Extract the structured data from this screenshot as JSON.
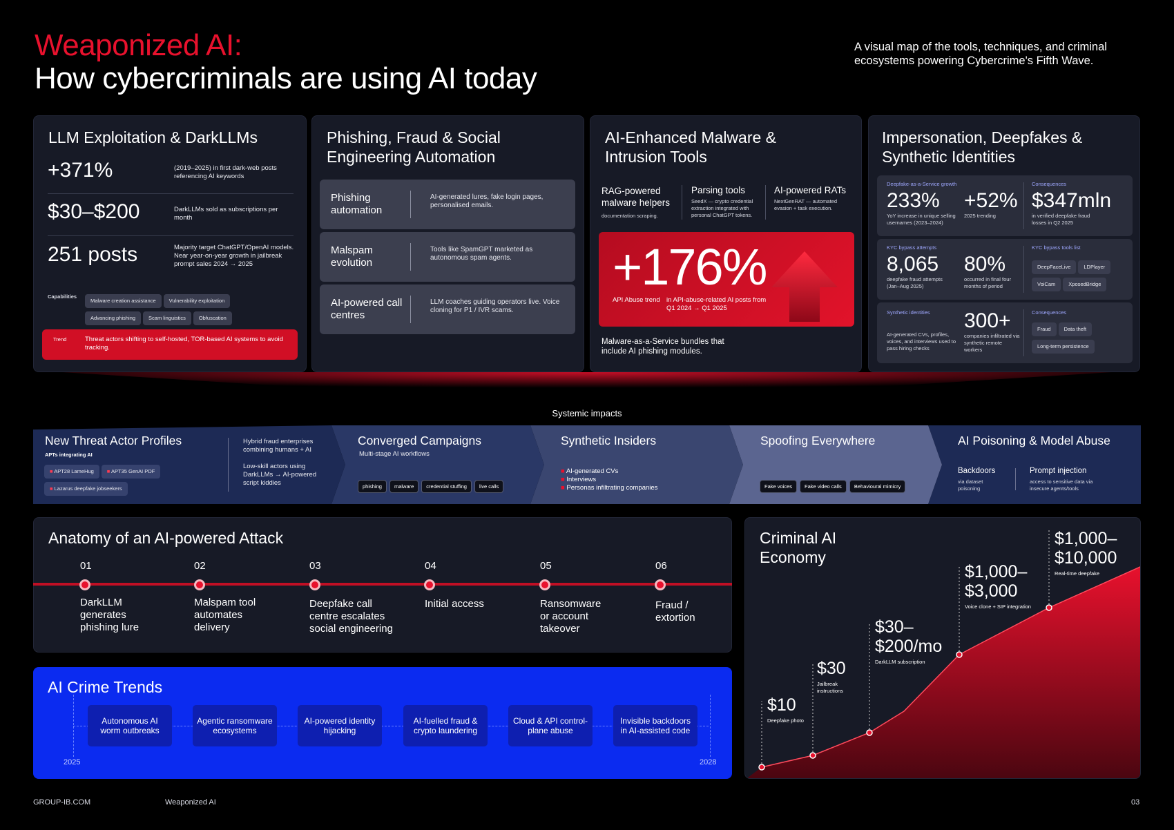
{
  "header": {
    "title_red": "Weaponized AI:",
    "title": "How cybercriminals are using AI today",
    "intro": "A visual map of the tools, techniques, and criminal ecosystems powering Cybercrime's Fifth Wave."
  },
  "llm": {
    "title": "LLM Exploitation & DarkLLMs",
    "stats": [
      {
        "value": "+371%",
        "desc": "(2019–2025) in first dark-web posts referencing AI keywords"
      },
      {
        "value": "$30–$200",
        "desc": "DarkLLMs sold as subscriptions per month"
      },
      {
        "value": "251 posts",
        "desc": "Majority target ChatGPT/OpenAI models. Near year-on-year growth in jailbreak prompt sales 2024 → 2025"
      }
    ],
    "capabilities_label": "Capabilities",
    "capabilities": [
      "Malware creation assistance",
      "Vulnerability exploitation",
      "Advancing phishing",
      "Scam linguistics",
      "Obfuscation"
    ],
    "trend_label": "Trend",
    "trend": "Threat actors shifting to self-hosted, TOR-based AI systems to avoid tracking."
  },
  "phishing": {
    "title": "Phishing, Fraud & Social Engineering Automation",
    "rows": [
      {
        "title": "Phishing automation",
        "desc": "AI-generated lures, fake login pages, personalised emails."
      },
      {
        "title": "Malspam evolution",
        "desc": "Tools like SpamGPT marketed as autonomous spam agents."
      },
      {
        "title": "AI-powered call centres",
        "desc": "LLM coaches guiding operators live. Voice cloning for P1 / IVR scams."
      }
    ]
  },
  "malware": {
    "title": "AI-Enhanced Malware & Intrusion Tools",
    "cols": [
      {
        "title": "RAG-powered malware helpers",
        "desc": "documentation scraping."
      },
      {
        "title": "Parsing tools",
        "desc": "SeedX — crypto credential extraction integrated with personal ChatGPT tokens."
      },
      {
        "title": "AI-powered RATs",
        "desc": "NextGenRAT — automated evasion + task execution."
      }
    ],
    "big": "+176%",
    "big_label": "API Abuse trend",
    "big_desc": "in API-abuse-related AI posts from Q1 2024 → Q1 2025",
    "footer": "Malware-as-a-Service bundles that include AI phishing modules."
  },
  "deepfake": {
    "title": "Impersonation, Deepfakes & Synthetic Identities",
    "p1": {
      "label": "Deepfake-as-a-Service growth",
      "v1": "233%",
      "d1": "YoY increase in unique selling usernames (2023–2024)",
      "v2": "+52%",
      "d2": "2025 trending",
      "c_label": "Consequences",
      "v3": "$347mln",
      "d3": "in verified deepfake fraud losses in Q2 2025"
    },
    "p2": {
      "label": "KYC bypass attempts",
      "v1": "8,065",
      "d1": "deepfake fraud attempts (Jan–Aug 2025)",
      "v2": "80%",
      "d2": "occurred in final four months of period",
      "tools_label": "KYC bypass tools list",
      "tools": [
        "DeepFaceLive",
        "LDPlayer",
        "VoiCam",
        "XposedBridge"
      ]
    },
    "p3": {
      "label": "Synthetic identities",
      "d1": "AI-generated CVs, profiles, voices, and interviews used to pass hiring checks",
      "v2": "300+",
      "d2": "companies infiltrated via synthetic remote workers",
      "c_label": "Consequences",
      "tags": [
        "Fraud",
        "Data theft",
        "Long-term persistence"
      ]
    }
  },
  "systemic": "Systemic impacts",
  "band": {
    "s1": {
      "title": "New Threat Actor Profiles",
      "sub": "APTs integrating AI",
      "apts": [
        "APT28 LameHug",
        "APT35 GenAI PDF",
        "Lazarus deepfake jobseekers"
      ],
      "t1": "Hybrid fraud enterprises combining humans + AI",
      "t2": "Low-skill actors using DarkLLMs → AI-powered script kiddies"
    },
    "s2": {
      "title": "Converged Campaigns",
      "sub": "Multi-stage AI workflows",
      "chips": [
        "phishing",
        "malware",
        "credential stuffing",
        "live calls"
      ]
    },
    "s3": {
      "title": "Synthetic Insiders",
      "items": [
        "AI-generated CVs",
        "Interviews",
        "Personas infiltrating companies"
      ]
    },
    "s4": {
      "title": "Spoofing Everywhere",
      "chips": [
        "Fake voices",
        "Fake video calls",
        "Behavioural mimicry"
      ]
    },
    "s5": {
      "title": "AI Poisoning & Model Abuse",
      "a_title": "Backdoors",
      "a_desc": "via dataset poisoning",
      "b_title": "Prompt injection",
      "b_desc": "access to sensitive data via insecure agents/tools"
    }
  },
  "anatomy": {
    "title": "Anatomy of an AI-powered Attack",
    "steps": [
      {
        "n": "01",
        "t": "DarkLLM generates phishing lure"
      },
      {
        "n": "02",
        "t": "Malspam tool automates delivery"
      },
      {
        "n": "03",
        "t": "Deepfake call centre escalates social engineering"
      },
      {
        "n": "04",
        "t": "Initial access"
      },
      {
        "n": "05",
        "t": "Ransomware or account takeover"
      },
      {
        "n": "06",
        "t": "Fraud / extortion"
      }
    ]
  },
  "trends": {
    "title": "AI Crime Trends",
    "items": [
      "Autonomous AI worm outbreaks",
      "Agentic ransomware ecosystems",
      "AI-powered identity hijacking",
      "AI-fuelled fraud & crypto laundering",
      "Cloud & API control-plane abuse",
      "Invisible backdoors in AI-assisted code"
    ],
    "start": "2025",
    "end": "2028"
  },
  "economy": {
    "title": "Criminal AI Economy",
    "points": [
      {
        "price": "$10",
        "note": "Deepfake photo"
      },
      {
        "price": "$30",
        "note": "Jailbreak instructions"
      },
      {
        "price": "$30–$200/mo",
        "note": "DarkLLM subscription"
      },
      {
        "price": "$1,000–$3,000",
        "note": "Voice clone + SIP integration"
      },
      {
        "price": "$1,000–$10,000",
        "note": "Real-time deepfake"
      }
    ]
  },
  "footer": {
    "site": "GROUP-IB.COM",
    "doc": "Weaponized AI",
    "page": "03"
  },
  "colors": {
    "accent": "#e8112d",
    "card": "#171a26",
    "blue": "#0b2bf0"
  }
}
